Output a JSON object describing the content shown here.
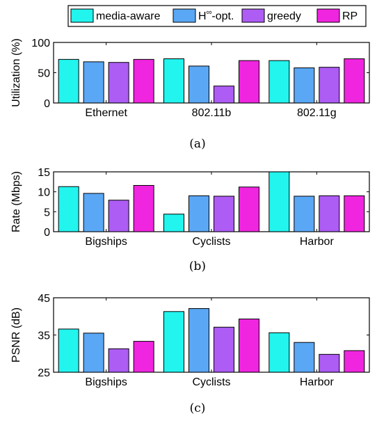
{
  "legend": [
    {
      "name": "media-aware",
      "color": "#22f4ee"
    },
    {
      "name": "H∞-opt.",
      "color": "#5aa7f5"
    },
    {
      "name": "greedy",
      "color": "#ad5cf4"
    },
    {
      "name": "RP",
      "color": "#f025df"
    }
  ],
  "chart_data": [
    {
      "type": "bar",
      "caption": "(a)",
      "ylabel": "Utilization (%)",
      "ylim": [
        0,
        100
      ],
      "yticks": [
        0,
        50,
        100
      ],
      "categories": [
        "Ethernet",
        "802.11b",
        "802.11g"
      ],
      "series": [
        {
          "name": "media-aware",
          "values": [
            72,
            73,
            70
          ]
        },
        {
          "name": "H∞-opt.",
          "values": [
            68,
            61,
            58
          ]
        },
        {
          "name": "greedy",
          "values": [
            67,
            28,
            59
          ]
        },
        {
          "name": "RP",
          "values": [
            72,
            70,
            73
          ]
        }
      ]
    },
    {
      "type": "bar",
      "caption": "(b)",
      "ylabel": "Rate (Mbps)",
      "ylim": [
        0,
        15
      ],
      "yticks": [
        0,
        5,
        10,
        15
      ],
      "categories": [
        "Bigships",
        "Cyclists",
        "Harbor"
      ],
      "series": [
        {
          "name": "media-aware",
          "values": [
            11.3,
            4.4,
            15.0
          ]
        },
        {
          "name": "H∞-opt.",
          "values": [
            9.6,
            9.0,
            8.9
          ]
        },
        {
          "name": "greedy",
          "values": [
            7.9,
            8.9,
            9.0
          ]
        },
        {
          "name": "RP",
          "values": [
            11.6,
            11.2,
            9.0
          ]
        }
      ]
    },
    {
      "type": "bar",
      "caption": "(c)",
      "ylabel": "PSNR (dB)",
      "ylim": [
        25,
        45
      ],
      "yticks": [
        25,
        35,
        45
      ],
      "categories": [
        "Bigships",
        "Cyclists",
        "Harbor"
      ],
      "series": [
        {
          "name": "media-aware",
          "values": [
            36.6,
            41.3,
            35.6
          ]
        },
        {
          "name": "H∞-opt.",
          "values": [
            35.5,
            42.1,
            33.0
          ]
        },
        {
          "name": "greedy",
          "values": [
            31.3,
            37.1,
            29.8
          ]
        },
        {
          "name": "RP",
          "values": [
            33.3,
            39.3,
            30.8
          ]
        }
      ]
    }
  ]
}
